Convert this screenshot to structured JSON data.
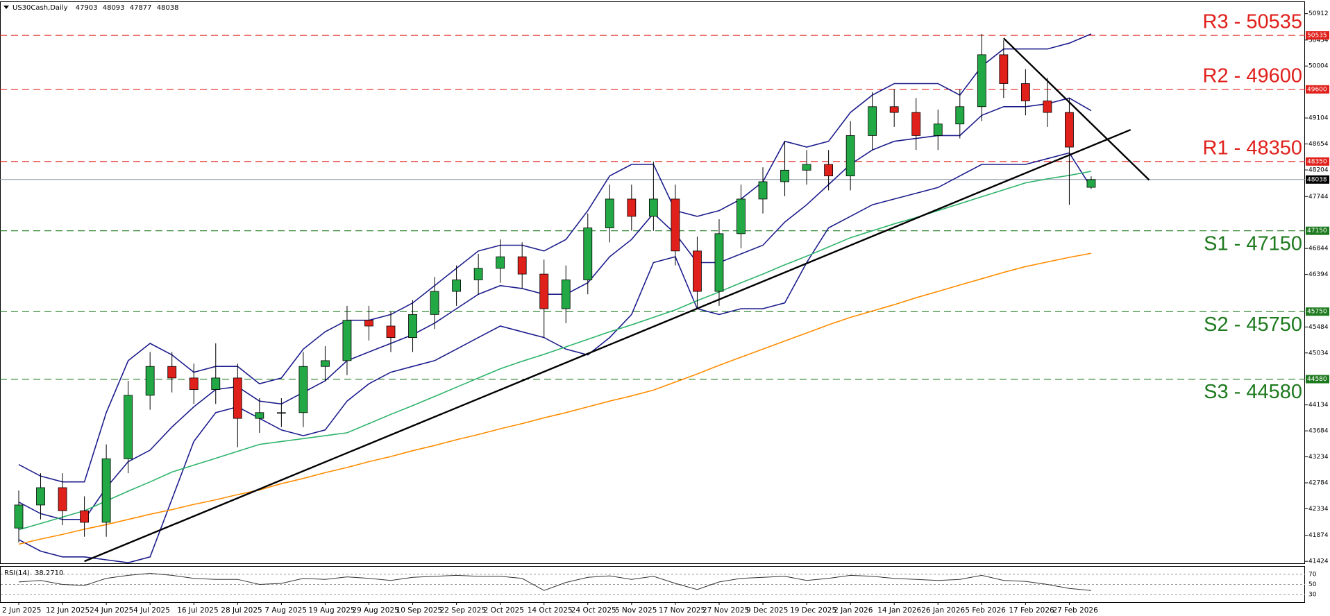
{
  "chart_data": {
    "type": "candlestick",
    "title": "US30Cash,Daily",
    "categories": [
      "2 Jun 2025",
      null,
      "12 Jun 2025",
      null,
      "24 Jun 2025",
      null,
      "4 Jul 2025",
      null,
      "16 Jul 2025",
      null,
      "28 Jul 2025",
      null,
      "7 Aug 2025",
      null,
      "19 Aug 2025",
      null,
      "29 Aug 2025",
      null,
      "10 Sep 2025",
      null,
      "22 Sep 2025",
      null,
      "2 Oct 2025",
      null,
      "14 Oct 2025",
      null,
      "24 Oct 2025",
      null,
      "5 Nov 2025",
      null,
      "17 Nov 2025",
      null,
      "27 Nov 2025",
      null,
      "9 Dec 2025",
      null,
      "19 Dec 2025",
      null,
      "2 Jan 2026",
      null,
      "14 Jan 2026",
      null,
      "26 Jan 2026",
      null,
      "5 Feb 2026",
      null,
      "17 Feb 2026",
      null,
      "27 Feb 2026",
      null
    ],
    "open": [
      42000,
      42400,
      42700,
      42300,
      42100,
      43200,
      44300,
      44800,
      44600,
      44400,
      44600,
      43900,
      44000,
      44000,
      44800,
      44900,
      45600,
      45500,
      45300,
      45700,
      46100,
      46300,
      46500,
      46700,
      46400,
      45800,
      46300,
      47200,
      47700,
      47400,
      47700,
      46800,
      46100,
      47100,
      47700,
      48000,
      48200,
      48300,
      48100,
      48800,
      49300,
      49200,
      48800,
      49000,
      49300,
      50200,
      49700,
      49400,
      49200,
      47903
    ],
    "high": [
      42650,
      42950,
      42950,
      42550,
      43450,
      44550,
      45050,
      45050,
      44850,
      45200,
      44850,
      44250,
      44250,
      45050,
      45150,
      45850,
      45850,
      45750,
      45950,
      46350,
      46550,
      46750,
      47000,
      46950,
      46650,
      46550,
      47450,
      47950,
      47950,
      48350,
      47950,
      47050,
      47350,
      47950,
      48250,
      48700,
      48550,
      48550,
      49050,
      49550,
      49600,
      49450,
      49250,
      49600,
      50560,
      50450,
      49950,
      49800,
      49450,
      48093
    ],
    "low": [
      41750,
      42150,
      42050,
      41850,
      41850,
      42950,
      44050,
      44350,
      44150,
      44150,
      43400,
      43650,
      43750,
      43750,
      44550,
      44650,
      45250,
      45050,
      45050,
      45450,
      45850,
      46050,
      46250,
      46150,
      45300,
      45550,
      46050,
      46950,
      47150,
      47150,
      46550,
      45800,
      45850,
      46850,
      47450,
      47750,
      47950,
      47850,
      47850,
      48550,
      48950,
      48550,
      48550,
      48750,
      49050,
      49450,
      49150,
      48950,
      47600,
      47877
    ],
    "close": [
      42400,
      42700,
      42300,
      42100,
      43200,
      44300,
      44800,
      44600,
      44400,
      44600,
      43900,
      44000,
      44000,
      44800,
      44900,
      45600,
      45500,
      45300,
      45700,
      46100,
      46300,
      46500,
      46700,
      46400,
      45800,
      46300,
      47200,
      47700,
      47400,
      47700,
      46800,
      46100,
      47100,
      47700,
      48000,
      48200,
      48300,
      48100,
      48800,
      49300,
      49200,
      48800,
      49000,
      49300,
      50200,
      49700,
      49400,
      49200,
      48600,
      48038
    ],
    "up_color": "#22a845",
    "down_color": "#e0201b",
    "current_price_color": "#8a94a6",
    "ylim": [
      41390,
      51100
    ],
    "yticks": [
      41424,
      41874,
      42334,
      42784,
      43234,
      43684,
      44134,
      45034,
      45484,
      46394,
      46844,
      47744,
      48204,
      48654,
      49104,
      50004,
      50454,
      50912
    ],
    "lines": [
      {
        "color": "#1c1c8c",
        "values": [
          43100,
          42900,
          42800,
          42800,
          44000,
          44900,
          45200,
          45000,
          44700,
          44800,
          44800,
          44500,
          44600,
          45100,
          45400,
          45600,
          45600,
          45700,
          45900,
          46200,
          46500,
          46800,
          46900,
          46900,
          46800,
          47000,
          47500,
          48100,
          48300,
          48300,
          47500,
          47400,
          47500,
          47700,
          48000,
          48700,
          48600,
          48700,
          49200,
          49500,
          49700,
          49700,
          49700,
          49500,
          50000,
          50300,
          50300,
          50300,
          50400,
          50560
        ]
      },
      {
        "color": "#1c1c8c",
        "values": [
          42450,
          42250,
          42150,
          42150,
          42700,
          43150,
          43350,
          43750,
          44100,
          44400,
          44450,
          44200,
          44150,
          44350,
          44550,
          44900,
          45050,
          45200,
          45350,
          45550,
          45800,
          46050,
          46200,
          46150,
          46050,
          46050,
          46250,
          46700,
          47000,
          47450,
          47100,
          46600,
          46600,
          46750,
          46900,
          47300,
          47600,
          47950,
          48300,
          48550,
          48700,
          48750,
          48800,
          48800,
          49150,
          49300,
          49300,
          49350,
          49450,
          49230
        ]
      },
      {
        "color": "#1c1c8c",
        "values": [
          41800,
          41600,
          41500,
          41500,
          41450,
          41400,
          41500,
          42500,
          43500,
          44000,
          44100,
          43900,
          43700,
          43600,
          43700,
          44200,
          44500,
          44700,
          44800,
          44900,
          45100,
          45300,
          45500,
          45400,
          45300,
          45100,
          45000,
          45300,
          45700,
          46600,
          46700,
          45800,
          45700,
          45800,
          45800,
          45900,
          46600,
          47200,
          47400,
          47600,
          47700,
          47800,
          47900,
          48100,
          48300,
          48300,
          48300,
          48400,
          48500,
          47900
        ]
      },
      {
        "color": "#2db36b",
        "values": [
          41970,
          42080,
          42190,
          42300,
          42470,
          42640,
          42800,
          42970,
          43090,
          43210,
          43330,
          43450,
          43500,
          43550,
          43600,
          43650,
          43810,
          43970,
          44120,
          44280,
          44440,
          44600,
          44760,
          44890,
          45010,
          45140,
          45270,
          45400,
          45520,
          45650,
          45780,
          45940,
          46090,
          46250,
          46400,
          46560,
          46710,
          46870,
          47030,
          47150,
          47270,
          47380,
          47500,
          47620,
          47740,
          47860,
          47980,
          48050,
          48110,
          48180
        ]
      },
      {
        "color": "#ff8c00",
        "values": [
          41720,
          41810,
          41890,
          41980,
          42060,
          42150,
          42240,
          42320,
          42410,
          42490,
          42580,
          42660,
          42770,
          42860,
          42960,
          43050,
          43150,
          43240,
          43340,
          43430,
          43530,
          43620,
          43720,
          43810,
          43910,
          44000,
          44100,
          44200,
          44290,
          44390,
          44530,
          44670,
          44820,
          44960,
          45100,
          45240,
          45380,
          45520,
          45650,
          45760,
          45870,
          45990,
          46100,
          46210,
          46320,
          46430,
          46530,
          46610,
          46690,
          46760
        ]
      }
    ],
    "trendlines": [
      {
        "color": "#000000",
        "x": [
          3,
          50.8
        ],
        "y": [
          41424,
          48900
        ]
      },
      {
        "color": "#000000",
        "x": [
          45,
          51.65
        ],
        "y": [
          50485,
          48030
        ]
      }
    ],
    "levels": [
      {
        "label": "R3 - 50535",
        "value": 50535,
        "color": "#e0201b"
      },
      {
        "label": "R2 - 49600",
        "value": 49600,
        "color": "#e0201b"
      },
      {
        "label": "R1 - 48350",
        "value": 48350,
        "color": "#e0201b"
      },
      {
        "label": "S1 - 47150",
        "value": 47150,
        "color": "#1e7a1e"
      },
      {
        "label": "S2 - 45750",
        "value": 45750,
        "color": "#1e7a1e"
      },
      {
        "label": "S3 - 44580",
        "value": 44580,
        "color": "#1e7a1e"
      }
    ],
    "rsi": {
      "title": "RSI(14)",
      "value": 38.271,
      "value_label": "38.2710",
      "color": "#333333",
      "ylim": [
        15,
        85
      ],
      "yticks": [
        30,
        50,
        70
      ],
      "values": [
        55,
        58,
        50,
        48,
        62,
        68,
        72,
        68,
        62,
        60,
        60,
        50,
        52,
        62,
        60,
        65,
        62,
        58,
        64,
        66,
        68,
        66,
        66,
        62,
        38,
        54,
        64,
        67,
        60,
        66,
        52,
        40,
        55,
        62,
        64,
        66,
        58,
        62,
        68,
        66,
        62,
        60,
        58,
        60,
        68,
        58,
        56,
        50,
        42,
        38
      ]
    }
  }
}
